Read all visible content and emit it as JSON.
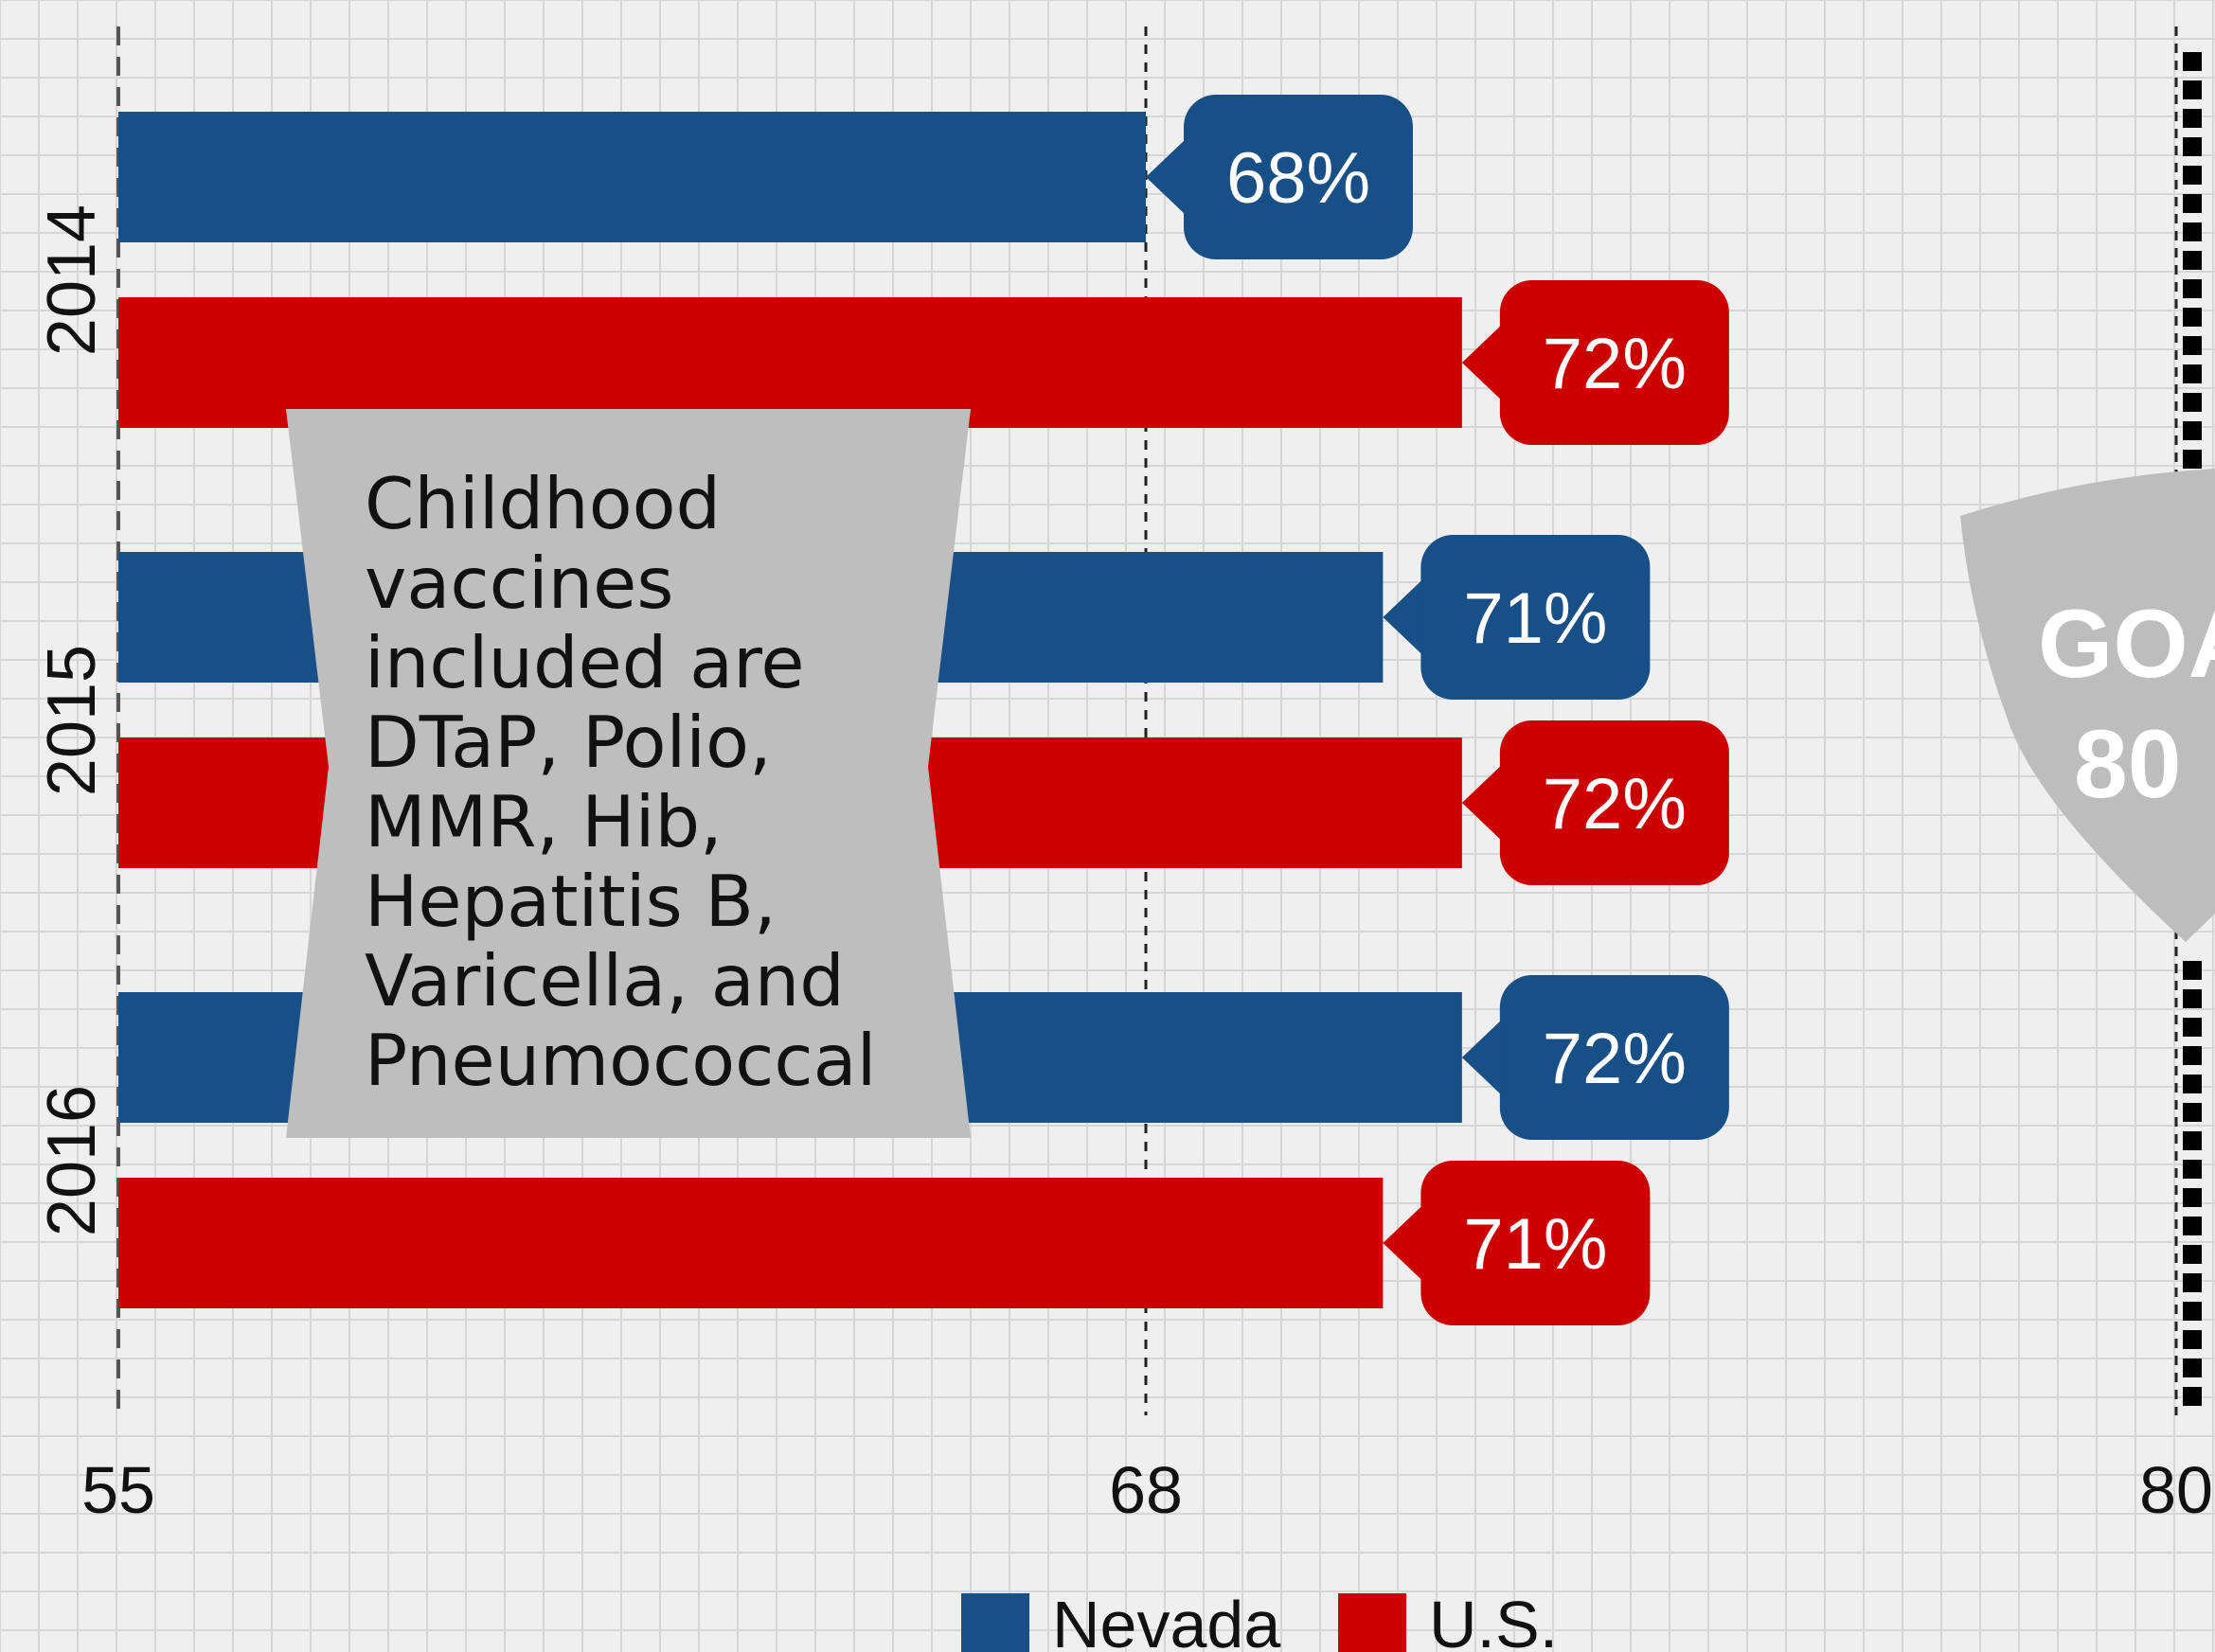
{
  "chart_data": {
    "type": "bar",
    "orientation": "horizontal",
    "categories": [
      "2014",
      "2015",
      "2016"
    ],
    "series": [
      {
        "name": "Nevada",
        "color": "#174f86",
        "values": [
          68,
          71,
          72
        ]
      },
      {
        "name": "U.S.",
        "color": "#cc0000",
        "values": [
          72,
          72,
          71
        ]
      }
    ],
    "data_labels": [
      [
        "68%",
        "72%"
      ],
      [
        "71%",
        "72%"
      ],
      [
        "72%",
        "71%"
      ]
    ],
    "xlim": [
      55,
      80
    ],
    "x_ticks": [
      "55",
      "68",
      "80"
    ],
    "reference_lines": [
      55,
      68,
      80
    ],
    "grid": true,
    "legend_position": "bottom"
  },
  "annotation": {
    "text": "Childhood\nvaccines\nincluded are\nDTaP, Polio,\nMMR, Hib,\nHepatitis B,\nVaricella, and\nPneumococcal"
  },
  "goal_badge": {
    "line1": "GOA",
    "line2": "80"
  }
}
